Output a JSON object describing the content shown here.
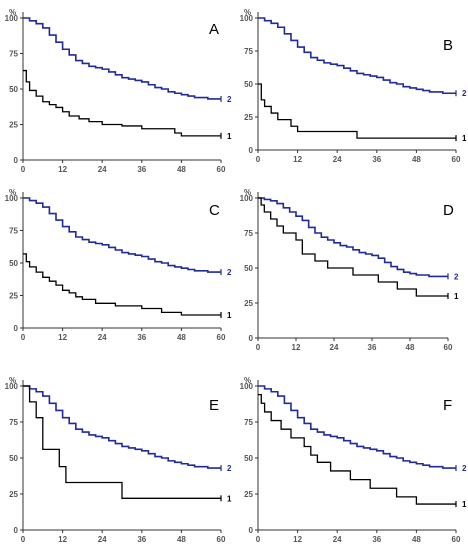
{
  "chart_data": [
    {
      "type": "line",
      "panel_label": "A",
      "ylabel": "%",
      "xlim": [
        0,
        60
      ],
      "ylim": [
        0,
        100
      ],
      "xticks": [
        0,
        12,
        24,
        36,
        48,
        60
      ],
      "yticks": [
        0,
        25,
        50,
        75,
        100
      ],
      "series": [
        {
          "name": "2",
          "color": "#1f2a9c",
          "x": [
            0,
            2,
            4,
            6,
            8,
            10,
            12,
            14,
            16,
            18,
            20,
            22,
            24,
            26,
            28,
            30,
            32,
            34,
            36,
            38,
            40,
            42,
            44,
            46,
            48,
            50,
            52,
            54,
            56,
            58,
            60
          ],
          "y": [
            100,
            98,
            96,
            93,
            88,
            83,
            78,
            74,
            70,
            68,
            66,
            65,
            64,
            62,
            60,
            58,
            57,
            56,
            55,
            53,
            51,
            50,
            48,
            47,
            46,
            45,
            44,
            44,
            43,
            43,
            43
          ]
        },
        {
          "name": "1",
          "color": "#000000",
          "x": [
            0,
            1,
            2,
            4,
            6,
            8,
            10,
            12,
            14,
            17,
            20,
            24,
            30,
            36,
            42,
            46,
            48,
            50,
            60
          ],
          "y": [
            63,
            55,
            49,
            45,
            41,
            39,
            37,
            34,
            31,
            29,
            27,
            25,
            24,
            22,
            22,
            19,
            17,
            17,
            17
          ]
        }
      ]
    },
    {
      "type": "line",
      "panel_label": "B",
      "ylabel": "%",
      "xlim": [
        0,
        60
      ],
      "ylim": [
        0,
        100
      ],
      "xticks": [
        0,
        12,
        24,
        36,
        48,
        60
      ],
      "yticks": [
        0,
        25,
        50,
        75,
        100
      ],
      "series": [
        {
          "name": "2",
          "color": "#1f2a9c",
          "x": [
            0,
            2,
            4,
            6,
            8,
            10,
            12,
            14,
            16,
            18,
            20,
            22,
            24,
            26,
            28,
            30,
            32,
            34,
            36,
            38,
            40,
            42,
            44,
            46,
            48,
            50,
            52,
            54,
            56,
            58,
            60
          ],
          "y": [
            100,
            98,
            96,
            93,
            88,
            83,
            78,
            74,
            70,
            68,
            66,
            65,
            64,
            62,
            60,
            58,
            57,
            56,
            55,
            53,
            51,
            50,
            48,
            47,
            46,
            45,
            44,
            44,
            43,
            43,
            43
          ]
        },
        {
          "name": "1",
          "color": "#000000",
          "x": [
            0,
            1,
            2,
            4,
            6,
            10,
            12,
            30,
            60
          ],
          "y": [
            50,
            38,
            33,
            28,
            23,
            18,
            14,
            9,
            9
          ]
        }
      ]
    },
    {
      "type": "line",
      "panel_label": "C",
      "ylabel": "%",
      "xlim": [
        0,
        60
      ],
      "ylim": [
        0,
        100
      ],
      "xticks": [
        0,
        12,
        24,
        36,
        48,
        60
      ],
      "yticks": [
        0,
        25,
        50,
        75,
        100
      ],
      "series": [
        {
          "name": "2",
          "color": "#1f2a9c",
          "x": [
            0,
            2,
            4,
            6,
            8,
            10,
            12,
            14,
            16,
            18,
            20,
            22,
            24,
            26,
            28,
            30,
            32,
            34,
            36,
            38,
            40,
            42,
            44,
            46,
            48,
            50,
            52,
            54,
            56,
            58,
            60
          ],
          "y": [
            100,
            98,
            96,
            93,
            88,
            83,
            78,
            74,
            70,
            68,
            66,
            65,
            64,
            62,
            60,
            58,
            57,
            56,
            55,
            53,
            51,
            50,
            48,
            47,
            46,
            45,
            44,
            44,
            43,
            43,
            43
          ]
        },
        {
          "name": "1",
          "color": "#000000",
          "x": [
            0,
            1,
            2,
            4,
            6,
            8,
            10,
            12,
            14,
            16,
            18,
            22,
            28,
            36,
            42,
            48,
            60
          ],
          "y": [
            57,
            51,
            47,
            43,
            39,
            36,
            33,
            29,
            27,
            24,
            22,
            19,
            17,
            15,
            12,
            10,
            10
          ]
        }
      ]
    },
    {
      "type": "line",
      "panel_label": "D",
      "ylabel": "%",
      "xlim": [
        0,
        60
      ],
      "ylim": [
        0,
        100
      ],
      "xticks": [
        0,
        12,
        24,
        36,
        48,
        60
      ],
      "yticks": [
        0,
        25,
        50,
        75,
        100
      ],
      "series": [
        {
          "name": "2",
          "color": "#1f2a9c",
          "x": [
            0,
            2,
            4,
            6,
            8,
            10,
            12,
            14,
            16,
            18,
            20,
            22,
            24,
            26,
            28,
            30,
            32,
            34,
            36,
            38,
            40,
            42,
            44,
            46,
            48,
            50,
            52,
            54,
            56,
            58,
            60
          ],
          "y": [
            100,
            99,
            98,
            96,
            93,
            90,
            87,
            84,
            79,
            75,
            72,
            70,
            68,
            66,
            65,
            63,
            61,
            60,
            59,
            57,
            54,
            51,
            49,
            47,
            46,
            45,
            45,
            44,
            44,
            44,
            44
          ]
        },
        {
          "name": "1",
          "color": "#000000",
          "x": [
            0,
            1,
            2,
            4,
            6,
            8,
            12,
            14,
            18,
            22,
            30,
            38,
            44,
            50,
            60
          ],
          "y": [
            100,
            95,
            90,
            85,
            80,
            75,
            70,
            60,
            55,
            50,
            45,
            40,
            35,
            30,
            30
          ]
        }
      ]
    },
    {
      "type": "line",
      "panel_label": "E",
      "ylabel": "%",
      "xlim": [
        0,
        60
      ],
      "ylim": [
        0,
        100
      ],
      "xticks": [
        0,
        12,
        24,
        36,
        48,
        60
      ],
      "yticks": [
        0,
        25,
        50,
        75,
        100
      ],
      "series": [
        {
          "name": "2",
          "color": "#1f2a9c",
          "x": [
            0,
            2,
            4,
            6,
            8,
            10,
            12,
            14,
            16,
            18,
            20,
            22,
            24,
            26,
            28,
            30,
            32,
            34,
            36,
            38,
            40,
            42,
            44,
            46,
            48,
            50,
            52,
            54,
            56,
            58,
            60
          ],
          "y": [
            100,
            98,
            96,
            93,
            88,
            83,
            78,
            74,
            70,
            68,
            66,
            65,
            64,
            62,
            60,
            58,
            57,
            56,
            55,
            53,
            51,
            50,
            48,
            47,
            46,
            45,
            44,
            44,
            43,
            43,
            43
          ]
        },
        {
          "name": "1",
          "color": "#000000",
          "x": [
            0,
            2,
            4,
            6,
            11,
            13,
            30,
            60
          ],
          "y": [
            100,
            89,
            78,
            56,
            44,
            33,
            22,
            22
          ]
        }
      ]
    },
    {
      "type": "line",
      "panel_label": "F",
      "ylabel": "%",
      "xlim": [
        0,
        60
      ],
      "ylim": [
        0,
        100
      ],
      "xticks": [
        0,
        12,
        24,
        36,
        48,
        60
      ],
      "yticks": [
        0,
        25,
        50,
        75,
        100
      ],
      "series": [
        {
          "name": "2",
          "color": "#1f2a9c",
          "x": [
            0,
            2,
            4,
            6,
            8,
            10,
            12,
            14,
            16,
            18,
            20,
            22,
            24,
            26,
            28,
            30,
            32,
            34,
            36,
            38,
            40,
            42,
            44,
            46,
            48,
            50,
            52,
            54,
            56,
            58,
            60
          ],
          "y": [
            100,
            98,
            96,
            93,
            88,
            83,
            78,
            74,
            70,
            68,
            66,
            65,
            64,
            62,
            60,
            58,
            57,
            56,
            55,
            53,
            51,
            50,
            48,
            47,
            46,
            45,
            44,
            44,
            43,
            43,
            43
          ]
        },
        {
          "name": "1",
          "color": "#000000",
          "x": [
            0,
            1,
            2,
            4,
            7,
            10,
            14,
            16,
            18,
            22,
            28,
            34,
            42,
            48,
            60
          ],
          "y": [
            94,
            88,
            82,
            76,
            70,
            64,
            58,
            52,
            47,
            41,
            35,
            29,
            23,
            18,
            18
          ]
        }
      ]
    }
  ]
}
